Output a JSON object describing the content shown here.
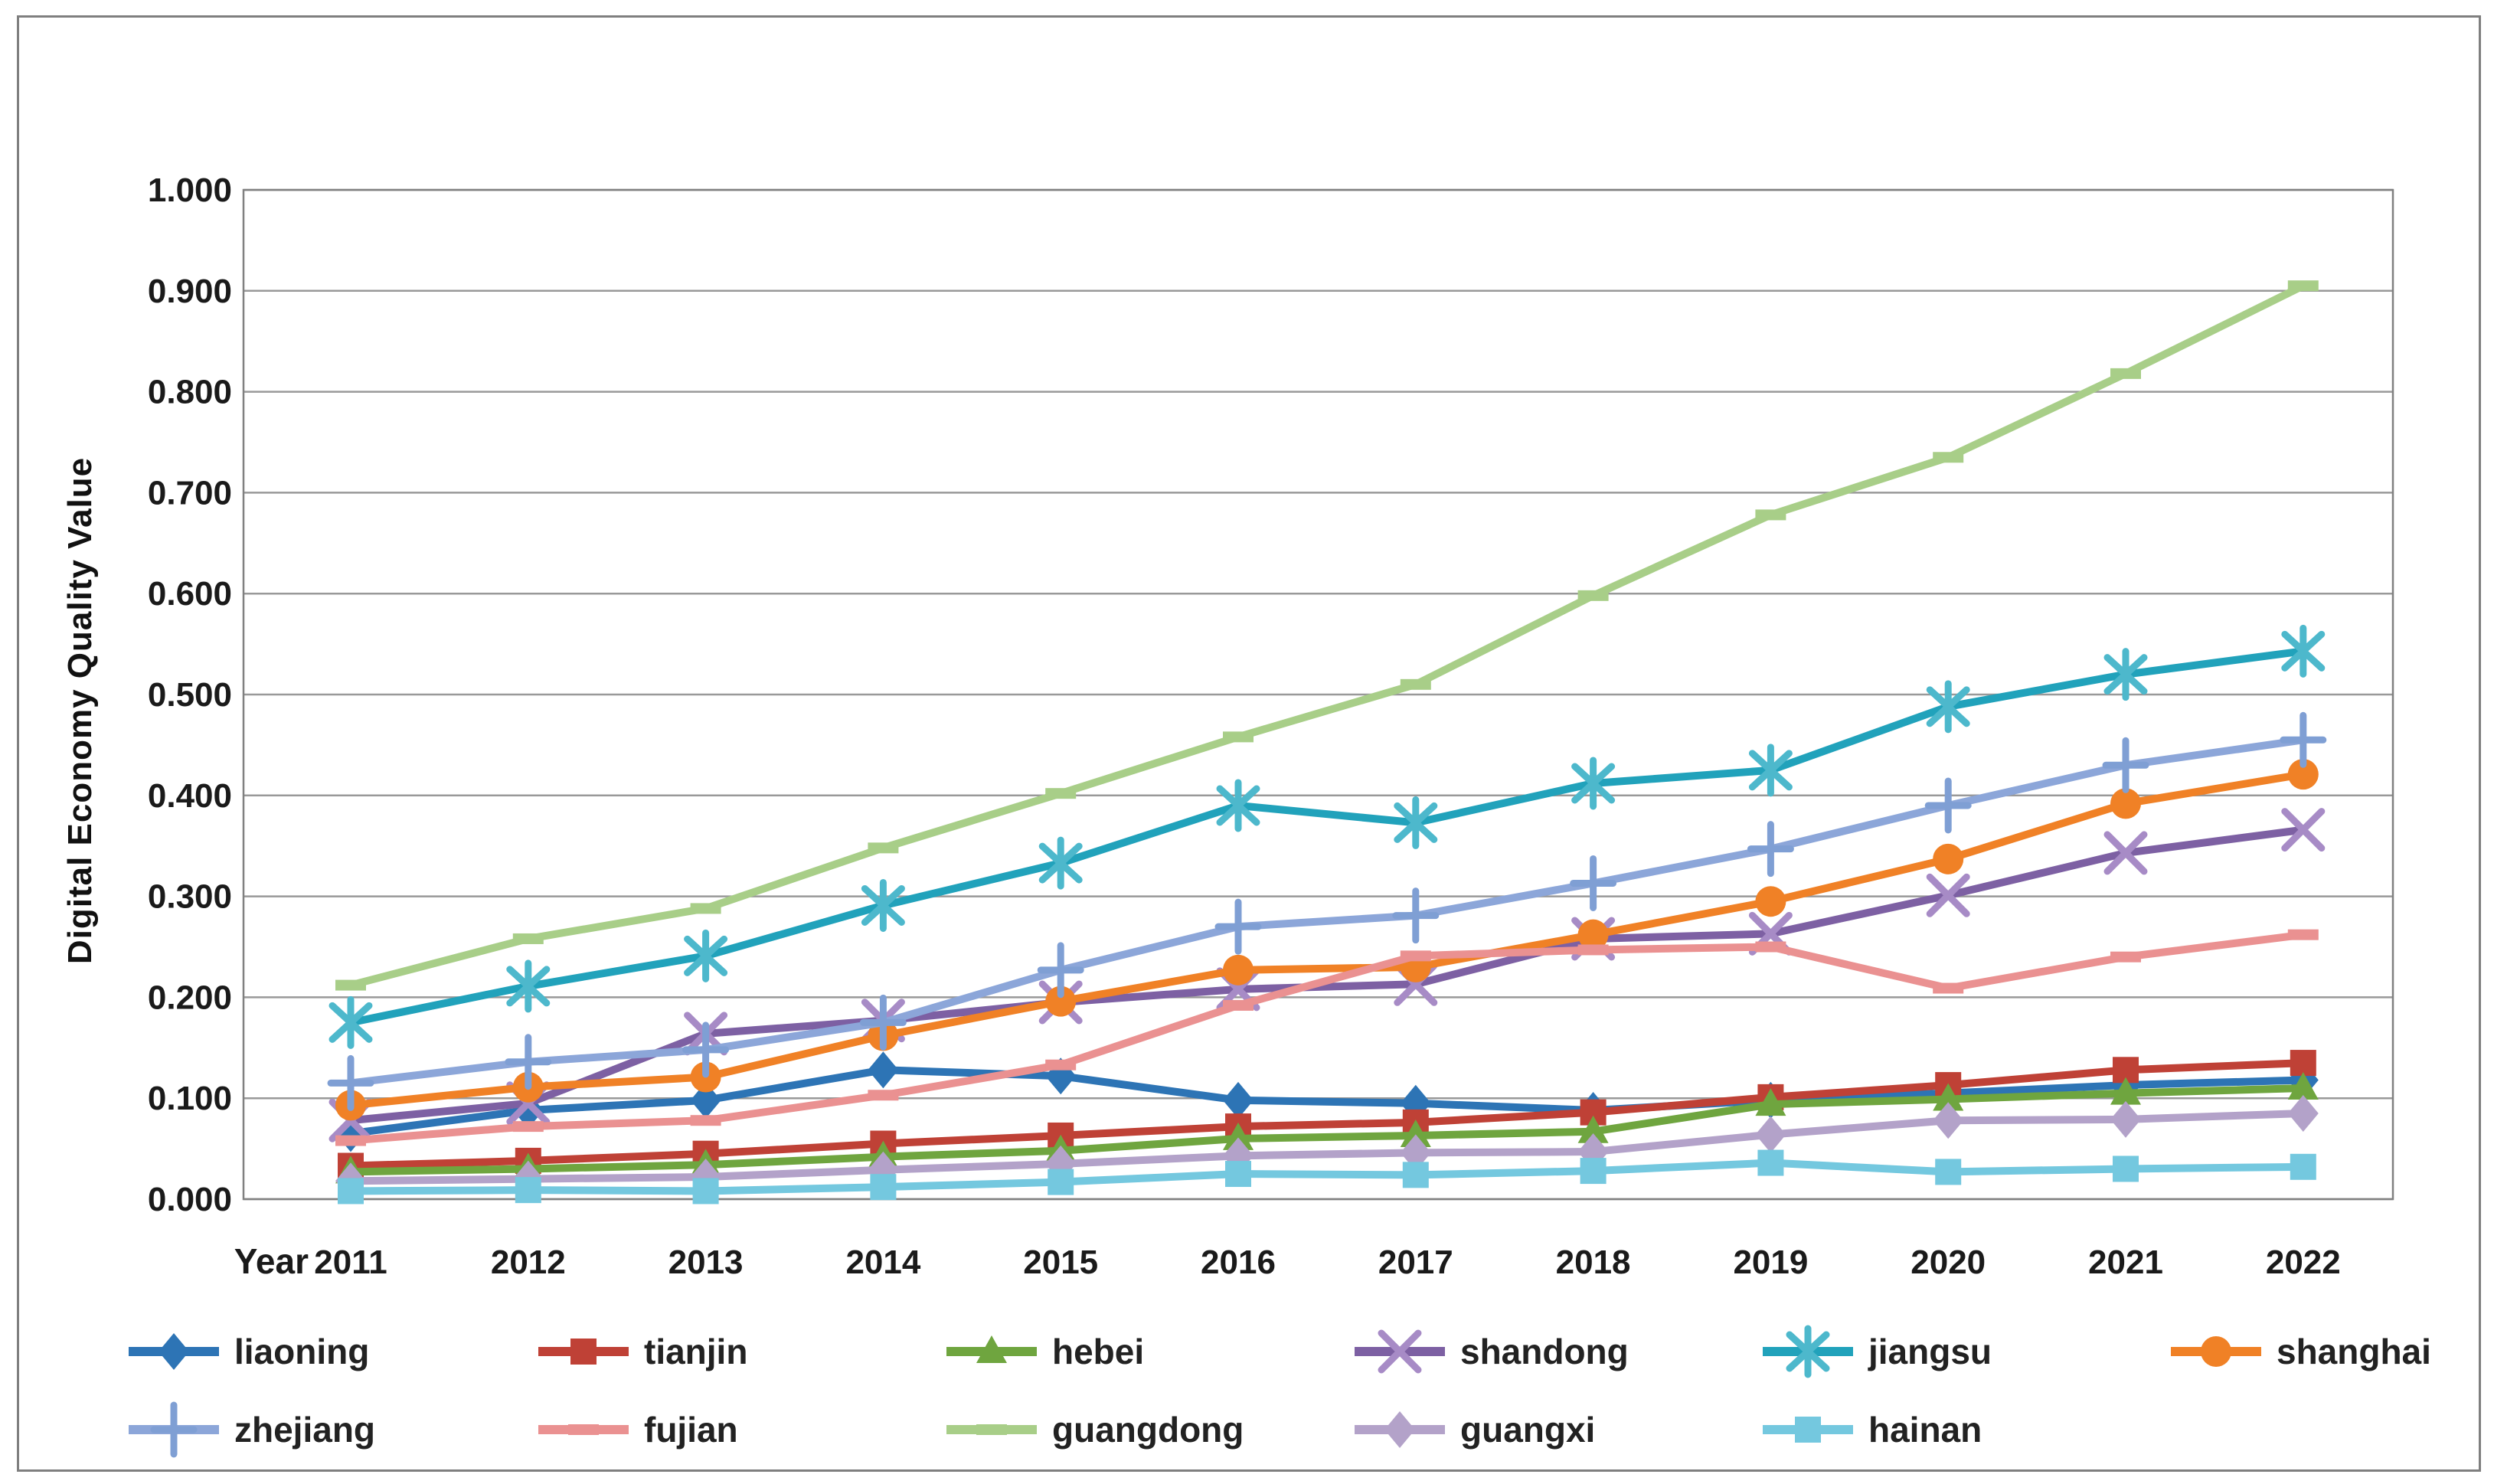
{
  "chart_data": {
    "type": "line",
    "title": "",
    "ylabel": "Digital Economy Quality Value",
    "xlabel": "Year",
    "ylim": [
      0.0,
      1.0
    ],
    "ytick_step": 0.1,
    "ytick_decimals": 3,
    "grid": "horizontal",
    "legend_position": "bottom-two-rows",
    "x": [
      2011,
      2012,
      2013,
      2014,
      2015,
      2016,
      2017,
      2018,
      2019,
      2020,
      2021,
      2022
    ],
    "series": [
      {
        "name": "liaoning",
        "color": "#2d74b5",
        "marker": "diamond",
        "marker_color": "#2d74b5",
        "values": [
          0.065,
          0.088,
          0.098,
          0.128,
          0.122,
          0.098,
          0.095,
          0.088,
          0.098,
          0.105,
          0.113,
          0.118
        ]
      },
      {
        "name": "tianjin",
        "color": "#bf4136",
        "marker": "square",
        "marker_color": "#bf4136",
        "values": [
          0.033,
          0.038,
          0.045,
          0.055,
          0.063,
          0.072,
          0.076,
          0.086,
          0.101,
          0.113,
          0.128,
          0.135
        ]
      },
      {
        "name": "hebei",
        "color": "#6fa53f",
        "marker": "triangle",
        "marker_color": "#6fa53f",
        "values": [
          0.027,
          0.03,
          0.034,
          0.042,
          0.048,
          0.06,
          0.063,
          0.067,
          0.094,
          0.099,
          0.105,
          0.11
        ]
      },
      {
        "name": "shandong",
        "color": "#7d60a3",
        "marker": "x",
        "marker_color": "#a78bc6",
        "values": [
          0.078,
          0.095,
          0.164,
          0.177,
          0.195,
          0.208,
          0.213,
          0.258,
          0.263,
          0.301,
          0.343,
          0.366
        ]
      },
      {
        "name": "jiangsu",
        "color": "#21a2bb",
        "marker": "asterisk",
        "marker_color": "#4db8cc",
        "values": [
          0.175,
          0.211,
          0.241,
          0.291,
          0.333,
          0.39,
          0.373,
          0.412,
          0.425,
          0.488,
          0.52,
          0.543
        ]
      },
      {
        "name": "shanghai",
        "color": "#f08126",
        "marker": "circle",
        "marker_color": "#f08126",
        "values": [
          0.093,
          0.111,
          0.121,
          0.162,
          0.196,
          0.227,
          0.23,
          0.262,
          0.295,
          0.337,
          0.392,
          0.421
        ]
      },
      {
        "name": "zhejiang",
        "color": "#8ca6d9",
        "marker": "plus",
        "marker_color": "#7f9fd4",
        "values": [
          0.115,
          0.136,
          0.148,
          0.175,
          0.227,
          0.27,
          0.281,
          0.313,
          0.347,
          0.39,
          0.43,
          0.455
        ]
      },
      {
        "name": "fujian",
        "color": "#ea9191",
        "marker": "dash",
        "marker_color": "#ea9191",
        "values": [
          0.058,
          0.072,
          0.078,
          0.103,
          0.133,
          0.192,
          0.241,
          0.247,
          0.25,
          0.209,
          0.24,
          0.262
        ]
      },
      {
        "name": "guangdong",
        "color": "#a8ce88",
        "marker": "dash",
        "marker_color": "#a8ce88",
        "values": [
          0.212,
          0.258,
          0.288,
          0.348,
          0.402,
          0.458,
          0.51,
          0.598,
          0.678,
          0.735,
          0.818,
          0.905
        ]
      },
      {
        "name": "guangxi",
        "color": "#b3a2c9",
        "marker": "diamond",
        "marker_color": "#b3a2c9",
        "values": [
          0.018,
          0.02,
          0.022,
          0.029,
          0.035,
          0.043,
          0.046,
          0.047,
          0.064,
          0.078,
          0.079,
          0.085
        ]
      },
      {
        "name": "hainan",
        "color": "#74c8df",
        "marker": "square",
        "marker_color": "#74c8df",
        "values": [
          0.008,
          0.009,
          0.008,
          0.012,
          0.017,
          0.025,
          0.024,
          0.028,
          0.036,
          0.027,
          0.03,
          0.032
        ]
      }
    ],
    "legend_rows": [
      [
        "liaoning",
        "tianjin",
        "hebei",
        "shandong",
        "jiangsu",
        "shanghai"
      ],
      [
        "zhejiang",
        "fujian",
        "guangdong",
        "guangxi",
        "hainan"
      ]
    ]
  },
  "style_colors": {
    "gridline": "#999999",
    "plot_border": "#808080",
    "tick_text": "#1a1a1a",
    "legend_text": "#222222"
  }
}
